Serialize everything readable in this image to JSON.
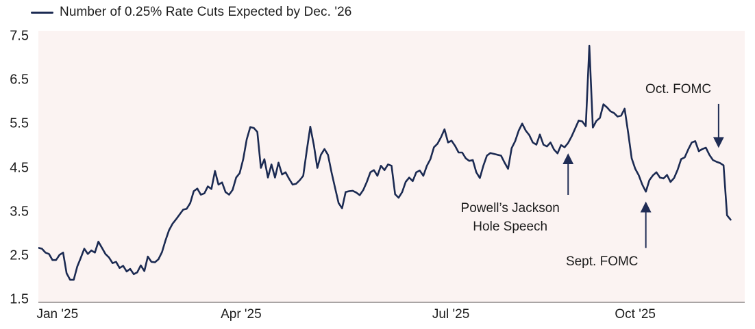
{
  "colors": {
    "line": "#1b2a52",
    "arrow": "#1f2c55",
    "plot_background": "#fbf3f2",
    "axis_line": "#a9a5a5",
    "text": "#1c1c1c"
  },
  "chart_data": {
    "type": "line",
    "title": "Number of 0.25% Rate Cuts Expected by Dec. '26",
    "xlabel": "",
    "ylabel": "",
    "ylim": [
      1.5,
      7.5
    ],
    "yticks": [
      "7.5",
      "6.5",
      "5.5",
      "4.5",
      "3.5",
      "2.5",
      "1.5"
    ],
    "xticks": [
      {
        "label": "Jan '25",
        "x_pct": 2.7
      },
      {
        "label": "Apr '25",
        "x_pct": 28.7
      },
      {
        "label": "Jul '25",
        "x_pct": 58.4
      },
      {
        "label": "Oct '25",
        "x_pct": 84.5
      }
    ],
    "grid": false,
    "legend_position": "top-left",
    "series": [
      {
        "name": "Number of 0.25% Rate Cuts Expected by Dec. '26",
        "x_unit": "percent-of-axis (Jan '25 through mid-Nov '25)",
        "x_start_pct": 0,
        "x_step_pct": 0.5,
        "values": [
          2.68,
          2.66,
          2.57,
          2.54,
          2.4,
          2.4,
          2.52,
          2.57,
          2.1,
          1.95,
          1.95,
          2.25,
          2.45,
          2.66,
          2.54,
          2.62,
          2.57,
          2.82,
          2.68,
          2.54,
          2.46,
          2.33,
          2.36,
          2.22,
          2.27,
          2.14,
          2.2,
          2.08,
          2.12,
          2.28,
          2.15,
          2.48,
          2.36,
          2.35,
          2.42,
          2.58,
          2.85,
          3.08,
          3.23,
          3.33,
          3.44,
          3.55,
          3.57,
          3.7,
          3.97,
          4.03,
          3.89,
          3.92,
          4.08,
          4.02,
          4.43,
          4.12,
          4.17,
          3.95,
          3.89,
          4.0,
          4.28,
          4.38,
          4.7,
          5.15,
          5.43,
          5.41,
          5.32,
          4.5,
          4.7,
          4.28,
          4.58,
          4.28,
          4.62,
          4.35,
          4.4,
          4.25,
          4.12,
          4.14,
          4.22,
          4.32,
          4.9,
          5.44,
          5.02,
          4.5,
          4.8,
          4.93,
          4.8,
          4.4,
          4.05,
          3.7,
          3.58,
          3.95,
          3.97,
          3.98,
          3.94,
          3.88,
          4.0,
          4.18,
          4.4,
          4.45,
          4.32,
          4.55,
          4.45,
          4.58,
          4.55,
          3.9,
          3.82,
          3.95,
          4.18,
          4.28,
          4.2,
          4.4,
          4.44,
          4.32,
          4.55,
          4.7,
          4.97,
          5.05,
          5.2,
          5.38,
          5.08,
          5.12,
          5.0,
          4.85,
          4.85,
          4.72,
          4.66,
          4.68,
          4.4,
          4.27,
          4.55,
          4.78,
          4.84,
          4.82,
          4.8,
          4.78,
          4.62,
          4.48,
          4.95,
          5.11,
          5.35,
          5.51,
          5.35,
          5.25,
          5.08,
          5.03,
          5.26,
          5.03,
          4.99,
          5.08,
          4.92,
          4.83,
          5.02,
          4.97,
          5.07,
          5.22,
          5.4,
          5.58,
          5.56,
          5.45,
          7.28,
          5.42,
          5.57,
          5.64,
          5.95,
          5.88,
          5.79,
          5.75,
          5.67,
          5.69,
          5.85,
          5.3,
          4.72,
          4.48,
          4.33,
          4.12,
          3.96,
          4.22,
          4.33,
          4.4,
          4.28,
          4.26,
          4.34,
          4.18,
          4.27,
          4.46,
          4.7,
          4.74,
          4.92,
          5.08,
          5.11,
          4.88,
          4.93,
          4.96,
          4.8,
          4.68,
          4.64,
          4.61,
          4.56,
          3.42,
          3.32
        ]
      }
    ],
    "annotations": [
      {
        "id": "jackson-hole",
        "lines": [
          "Powell’s Jackson",
          "Hole Speech"
        ],
        "text": {
          "x_pct": 66.8,
          "y_pct": 62.0
        },
        "arrow": {
          "x_pct": 75.0,
          "y1_pct": 60.6,
          "y2_pct": 46.0,
          "direction": "up"
        }
      },
      {
        "id": "sept-fomc",
        "lines": [
          "Sept. FOMC"
        ],
        "text": {
          "x_pct": 79.8,
          "y_pct": 81.8
        },
        "arrow": {
          "x_pct": 86.0,
          "y1_pct": 80.2,
          "y2_pct": 63.8,
          "direction": "up"
        }
      },
      {
        "id": "oct-fomc",
        "lines": [
          "Oct. FOMC"
        ],
        "text": {
          "x_pct": 90.6,
          "y_pct": 18.3
        },
        "arrow": {
          "x_pct": 96.3,
          "y1_pct": 27.0,
          "y2_pct": 42.5,
          "direction": "down"
        }
      }
    ]
  }
}
